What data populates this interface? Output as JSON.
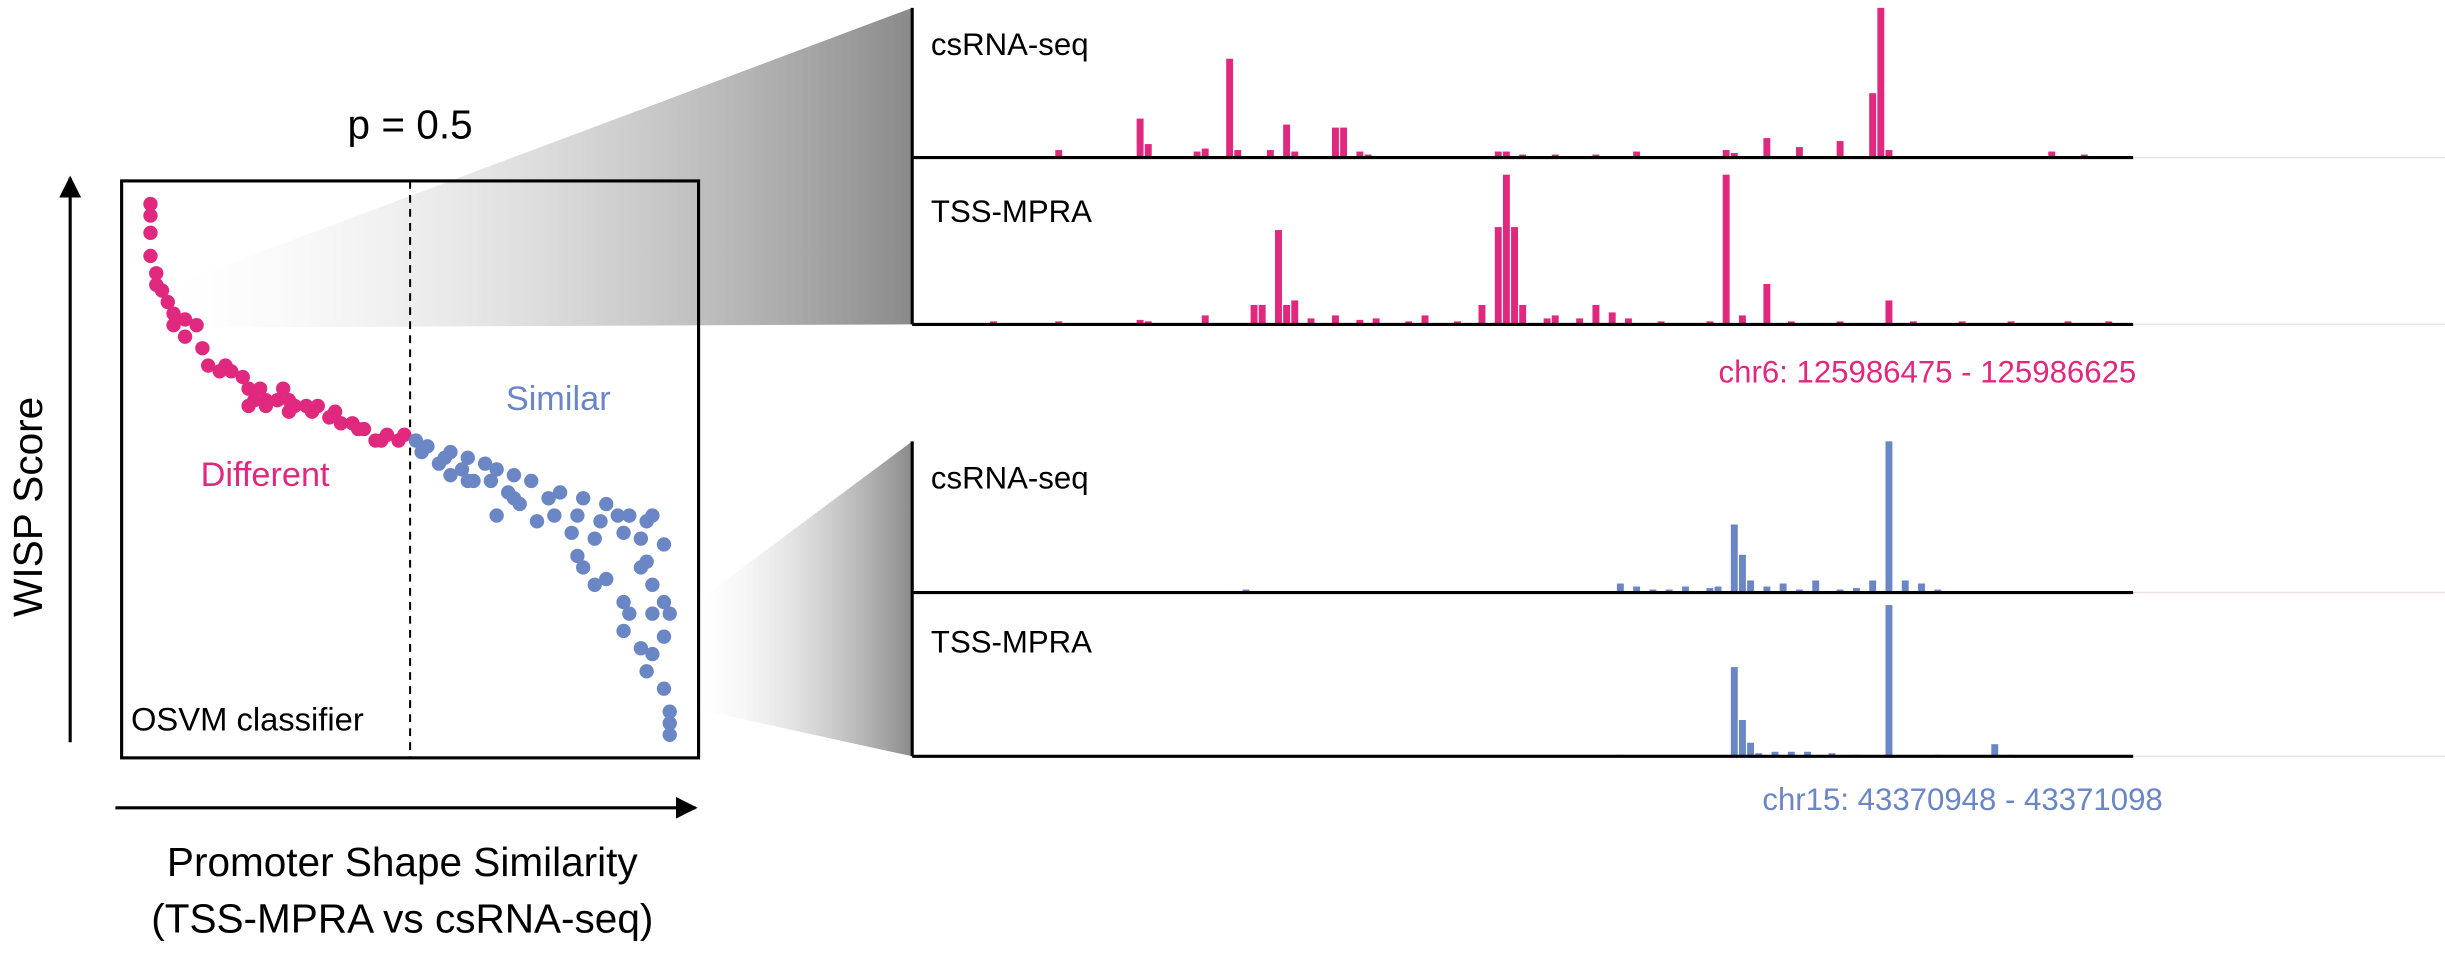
{
  "chart_data": [
    {
      "type": "scatter",
      "title": "p = 0.5",
      "threshold": 0.5,
      "xlabel": [
        "Promoter Shape Similarity",
        "(TSS-MPRA vs csRNA-seq)"
      ],
      "ylabel": "WISP Score",
      "classifier_label": "OSVM classifier",
      "xlim": [
        0,
        1
      ],
      "ylim": [
        0,
        1
      ],
      "series": [
        {
          "name": "Different",
          "color": "#e0287f",
          "x": [
            0.05,
            0.05,
            0.05,
            0.05,
            0.06,
            0.06,
            0.07,
            0.08,
            0.09,
            0.09,
            0.11,
            0.13,
            0.14,
            0.15,
            0.17,
            0.18,
            0.19,
            0.21,
            0.22,
            0.23,
            0.24,
            0.25,
            0.27,
            0.28,
            0.29,
            0.3,
            0.32,
            0.33,
            0.34,
            0.36,
            0.37,
            0.38,
            0.4,
            0.41,
            0.42,
            0.44,
            0.45,
            0.46,
            0.48,
            0.49,
            0.22,
            0.25,
            0.11,
            0.29
          ],
          "values": [
            0.96,
            0.94,
            0.91,
            0.87,
            0.84,
            0.82,
            0.81,
            0.79,
            0.77,
            0.75,
            0.76,
            0.75,
            0.71,
            0.68,
            0.67,
            0.68,
            0.67,
            0.66,
            0.64,
            0.62,
            0.64,
            0.62,
            0.62,
            0.64,
            0.62,
            0.61,
            0.61,
            0.6,
            0.61,
            0.59,
            0.6,
            0.58,
            0.58,
            0.57,
            0.57,
            0.55,
            0.55,
            0.56,
            0.55,
            0.56,
            0.61,
            0.61,
            0.73,
            0.6
          ]
        },
        {
          "name": "Similar",
          "color": "#6b86c4",
          "x": [
            0.51,
            0.52,
            0.53,
            0.55,
            0.56,
            0.57,
            0.59,
            0.6,
            0.61,
            0.63,
            0.64,
            0.65,
            0.67,
            0.68,
            0.65,
            0.69,
            0.71,
            0.72,
            0.74,
            0.75,
            0.76,
            0.78,
            0.79,
            0.8,
            0.82,
            0.83,
            0.84,
            0.86,
            0.87,
            0.88,
            0.9,
            0.91,
            0.92,
            0.94,
            0.79,
            0.8,
            0.82,
            0.84,
            0.87,
            0.88,
            0.9,
            0.91,
            0.92,
            0.94,
            0.95,
            0.92,
            0.87,
            0.9,
            0.92,
            0.94,
            0.95,
            0.95,
            0.95,
            0.91,
            0.94,
            0.6,
            0.57,
            0.68
          ],
          "values": [
            0.55,
            0.53,
            0.54,
            0.51,
            0.52,
            0.49,
            0.5,
            0.52,
            0.48,
            0.51,
            0.48,
            0.5,
            0.46,
            0.49,
            0.42,
            0.44,
            0.48,
            0.41,
            0.45,
            0.42,
            0.46,
            0.39,
            0.42,
            0.45,
            0.38,
            0.41,
            0.44,
            0.42,
            0.39,
            0.42,
            0.38,
            0.41,
            0.42,
            0.37,
            0.35,
            0.33,
            0.3,
            0.31,
            0.27,
            0.25,
            0.33,
            0.34,
            0.3,
            0.27,
            0.25,
            0.25,
            0.22,
            0.19,
            0.18,
            0.12,
            0.08,
            0.06,
            0.04,
            0.15,
            0.21,
            0.48,
            0.53,
            0.45
          ]
        }
      ]
    },
    {
      "type": "bar",
      "title": "chr6: 125986475 - 125986625",
      "color": "#e0287f",
      "xlim": [
        0,
        150
      ],
      "ylim": [
        0,
        1
      ],
      "series": [
        {
          "name": "csRNA-seq",
          "x": [
            18,
            28,
            29,
            35,
            36,
            39,
            40,
            44,
            46,
            47,
            52,
            53,
            55,
            56,
            72,
            73,
            75,
            79,
            84,
            89,
            100,
            101,
            105,
            109,
            114,
            118,
            119,
            120,
            140,
            144
          ],
          "values": [
            0.05,
            0.26,
            0.09,
            0.04,
            0.06,
            0.66,
            0.05,
            0.05,
            0.22,
            0.04,
            0.2,
            0.2,
            0.04,
            0.02,
            0.04,
            0.04,
            0.02,
            0.02,
            0.02,
            0.04,
            0.05,
            0.03,
            0.13,
            0.07,
            0.11,
            0.43,
            1.0,
            0.05,
            0.04,
            0.02
          ]
        },
        {
          "name": "TSS-MPRA",
          "x": [
            10,
            18,
            28,
            29,
            36,
            42,
            43,
            45,
            46,
            47,
            49,
            52,
            55,
            57,
            61,
            63,
            67,
            70,
            72,
            73,
            74,
            75,
            78,
            79,
            82,
            84,
            86,
            88,
            92,
            98,
            100,
            102,
            105,
            108,
            114,
            120,
            123,
            129,
            135,
            142,
            147
          ],
          "values": [
            0.02,
            0.02,
            0.03,
            0.02,
            0.06,
            0.13,
            0.13,
            0.63,
            0.13,
            0.16,
            0.04,
            0.06,
            0.03,
            0.04,
            0.02,
            0.06,
            0.02,
            0.13,
            0.65,
            1.0,
            0.65,
            0.13,
            0.04,
            0.06,
            0.04,
            0.13,
            0.08,
            0.04,
            0.02,
            0.02,
            1.0,
            0.06,
            0.27,
            0.02,
            0.02,
            0.16,
            0.02,
            0.02,
            0.02,
            0.02,
            0.02
          ]
        }
      ]
    },
    {
      "type": "bar",
      "title": "chr15: 43370948 - 43371098",
      "color": "#6b86c4",
      "xlim": [
        0,
        150
      ],
      "ylim": [
        0,
        1
      ],
      "series": [
        {
          "name": "csRNA-seq",
          "x": [
            41,
            87,
            89,
            91,
            93,
            95,
            98,
            99,
            101,
            102,
            103,
            105,
            107,
            109,
            111,
            114,
            116,
            118,
            120,
            122,
            124,
            126
          ],
          "values": [
            0.02,
            0.06,
            0.04,
            0.02,
            0.02,
            0.04,
            0.03,
            0.04,
            0.45,
            0.25,
            0.08,
            0.04,
            0.06,
            0.02,
            0.08,
            0.02,
            0.03,
            0.08,
            1.0,
            0.08,
            0.06,
            0.02
          ]
        },
        {
          "name": "TSS-MPRA",
          "x": [
            87,
            101,
            102,
            103,
            104,
            106,
            108,
            110,
            113,
            116,
            120,
            126,
            133,
            135
          ],
          "values": [
            0.01,
            0.59,
            0.24,
            0.09,
            0.02,
            0.03,
            0.03,
            0.03,
            0.02,
            0.01,
            1.0,
            0.01,
            0.08,
            0.01
          ]
        }
      ]
    }
  ]
}
